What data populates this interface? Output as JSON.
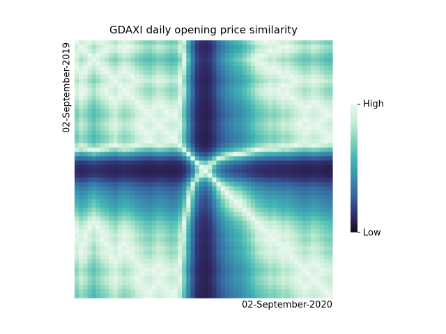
{
  "chart_data": {
    "type": "heatmap",
    "title": "GDAXI daily opening price similarity",
    "ylabel": "02-September-2019",
    "xlabel": "02-September-2020",
    "colorbar": {
      "high_label": "High",
      "low_label": "Low"
    },
    "colormap": [
      "#1b0a1c",
      "#322f6f",
      "#3567a0",
      "#3a8fad",
      "#42b4b4",
      "#7ed2bc",
      "#c6ecd4",
      "#e8f7ef"
    ],
    "grid": false,
    "legend": "right",
    "price_profile": [
      0.82,
      0.86,
      0.84,
      0.8,
      0.77,
      0.8,
      0.83,
      0.85,
      0.88,
      0.9,
      0.87,
      0.85,
      0.86,
      0.88,
      0.91,
      0.93,
      0.95,
      0.96,
      0.94,
      0.92,
      0.93,
      0.95,
      0.97,
      0.96,
      0.9,
      0.78,
      0.6,
      0.4,
      0.18,
      0.06,
      0.02,
      0.1,
      0.25,
      0.38,
      0.46,
      0.52,
      0.56,
      0.6,
      0.62,
      0.66,
      0.7,
      0.74,
      0.78,
      0.8,
      0.82,
      0.84,
      0.83,
      0.85,
      0.87,
      0.86,
      0.88,
      0.9,
      0.92,
      0.94,
      0.93,
      0.91,
      0.92,
      0.94,
      0.96,
      0.97
    ]
  }
}
